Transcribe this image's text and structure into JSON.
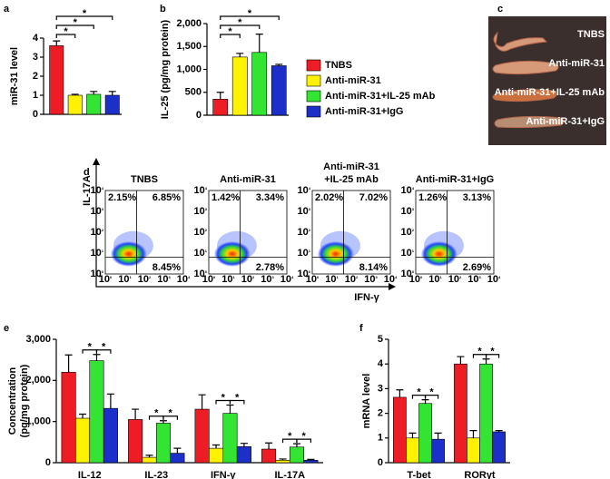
{
  "chart_data": [
    {
      "type": "bar",
      "panel": "a",
      "ylabel": "miR-31 level",
      "values": [
        3.6,
        1.0,
        1.05,
        1.0
      ],
      "errors": [
        0.25,
        0.05,
        0.15,
        0.2
      ],
      "colors": [
        "#ee1c25",
        "#fff200",
        "#33e433",
        "#1c2fc9"
      ],
      "ylim": [
        0,
        4
      ],
      "yticks": [
        0,
        1,
        2,
        3,
        4
      ],
      "brackets": [
        {
          "between": [
            0,
            3
          ],
          "label": "*"
        },
        {
          "between": [
            0,
            2
          ],
          "label": "*"
        },
        {
          "between": [
            0,
            1
          ],
          "label": "*"
        }
      ]
    },
    {
      "type": "bar",
      "panel": "b",
      "ylabel": "IL-25 (pg/mg protein)",
      "values": [
        350,
        1270,
        1370,
        1080
      ],
      "errors": [
        150,
        80,
        400,
        30
      ],
      "colors": [
        "#ee1c25",
        "#fff200",
        "#33e433",
        "#1c2fc9"
      ],
      "legend": [
        "TNBS",
        "Anti-miR-31",
        "Anti-miR-31+IL-25 mAb",
        "Anti-miR-31+IgG"
      ],
      "ylim": [
        0,
        2000
      ],
      "yticks": [
        0,
        500,
        {
          "value": 1000,
          "label": "1,000"
        },
        {
          "value": 1500,
          "label": "1,500"
        },
        {
          "value": 2000,
          "label": "2,000"
        }
      ],
      "brackets": [
        {
          "between": [
            0,
            3
          ],
          "label": "*"
        },
        {
          "between": [
            0,
            2
          ],
          "label": "*"
        },
        {
          "between": [
            0,
            1
          ],
          "label": "*"
        }
      ]
    },
    {
      "type": "grouped_bar",
      "panel": "e",
      "ylabel": [
        "Concentration",
        "(pg/mg protein)"
      ],
      "categories": [
        "IL-12",
        "IL-23",
        "IFN-γ",
        "IL-17A"
      ],
      "series": [
        {
          "color": "#ee1c25",
          "values": [
            2200,
            1050,
            1300,
            330
          ],
          "errors": [
            420,
            250,
            350,
            150
          ]
        },
        {
          "color": "#fff200",
          "values": [
            1080,
            130,
            350,
            60
          ],
          "errors": [
            100,
            50,
            80,
            30
          ]
        },
        {
          "color": "#33e433",
          "values": [
            2480,
            960,
            1200,
            380
          ],
          "errors": [
            150,
            60,
            200,
            80
          ]
        },
        {
          "color": "#1c2fc9",
          "values": [
            1320,
            230,
            390,
            60
          ],
          "errors": [
            350,
            120,
            80,
            20
          ]
        }
      ],
      "ylim": [
        0,
        3000
      ],
      "yticks": [
        0,
        {
          "value": 1000,
          "label": "1,000"
        },
        {
          "value": 2000,
          "label": "2,000"
        },
        {
          "value": 3000,
          "label": "3,000"
        }
      ],
      "brackets": [
        {
          "category": 0,
          "between": [
            1,
            2
          ],
          "label": "*"
        },
        {
          "category": 0,
          "between": [
            2,
            3
          ],
          "label": "*"
        },
        {
          "category": 1,
          "between": [
            1,
            2
          ],
          "label": "*"
        },
        {
          "category": 1,
          "between": [
            2,
            3
          ],
          "label": "*"
        },
        {
          "category": 2,
          "between": [
            1,
            2
          ],
          "label": "*"
        },
        {
          "category": 2,
          "between": [
            2,
            3
          ],
          "label": "*"
        },
        {
          "category": 3,
          "between": [
            1,
            2
          ],
          "label": "*"
        },
        {
          "category": 3,
          "between": [
            2,
            3
          ],
          "label": "*"
        }
      ]
    },
    {
      "type": "grouped_bar",
      "panel": "f",
      "ylabel": "mRNA level",
      "categories": [
        "T-bet",
        "RORγt"
      ],
      "series": [
        {
          "color": "#ee1c25",
          "values": [
            2.65,
            4.0
          ],
          "errors": [
            0.3,
            0.3
          ]
        },
        {
          "color": "#fff200",
          "values": [
            1.0,
            1.0
          ],
          "errors": [
            0.2,
            0.3
          ]
        },
        {
          "color": "#33e433",
          "values": [
            2.4,
            4.0
          ],
          "errors": [
            0.15,
            0.2
          ]
        },
        {
          "color": "#1c2fc9",
          "values": [
            0.95,
            1.25
          ],
          "errors": [
            0.25,
            0.05
          ]
        }
      ],
      "ylim": [
        0,
        5
      ],
      "yticks": [
        0,
        1,
        2,
        3,
        4,
        5
      ],
      "brackets": [
        {
          "category": 0,
          "between": [
            1,
            2
          ],
          "label": "*"
        },
        {
          "category": 0,
          "between": [
            2,
            3
          ],
          "label": "*"
        },
        {
          "category": 1,
          "between": [
            1,
            2
          ],
          "label": "*"
        },
        {
          "category": 1,
          "between": [
            2,
            3
          ],
          "label": "*"
        }
      ]
    }
  ],
  "photo": {
    "panel": "c",
    "labels": [
      "TNBS",
      "Anti-miR-31",
      "Anti-miR-31+IL-25 mAb",
      "Anti-miR-31+IgG"
    ]
  },
  "flow": {
    "panel": "d",
    "ylabel": "IL-17A",
    "xlabel": "IFN-γ",
    "tick_base": "10",
    "tick_exponents": [
      "0",
      "1",
      "2",
      "3",
      "4"
    ],
    "plots": [
      {
        "title": [
          "TNBS"
        ],
        "upper_left": "2.15%",
        "upper_right": "6.85%",
        "lower_right": "8.45%"
      },
      {
        "title": [
          "Anti-miR-31"
        ],
        "upper_left": "1.42%",
        "upper_right": "3.34%",
        "lower_right": "2.78%"
      },
      {
        "title": [
          "Anti-miR-31",
          "+IL-25 mAb"
        ],
        "upper_left": "2.02%",
        "upper_right": "7.02%",
        "lower_right": "8.14%"
      },
      {
        "title": [
          "Anti-miR-31+IgG"
        ],
        "upper_left": "1.26%",
        "upper_right": "3.13%",
        "lower_right": "2.69%"
      }
    ]
  }
}
